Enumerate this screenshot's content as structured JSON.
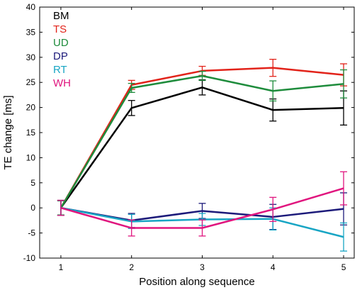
{
  "chart_data": {
    "type": "line",
    "title": "",
    "xlabel": "Position along sequence",
    "ylabel": "TE change [ms]",
    "xlim": [
      0.7,
      5.15
    ],
    "ylim": [
      -10,
      40
    ],
    "x": [
      1,
      2,
      3,
      4,
      5
    ],
    "xticks": [
      1,
      2,
      3,
      4,
      5
    ],
    "yticks": [
      -10,
      -5,
      0,
      5,
      10,
      15,
      20,
      25,
      30,
      35,
      40
    ],
    "grid": false,
    "legend_position": "top-left",
    "error_bars": true,
    "series": [
      {
        "name": "BM",
        "color": "#000000",
        "values": [
          0,
          19.9,
          24.0,
          19.5,
          19.9
        ],
        "err": [
          1.5,
          1.5,
          1.5,
          2.2,
          3.4
        ]
      },
      {
        "name": "TS",
        "color": "#e2231a",
        "values": [
          0,
          24.5,
          27.3,
          27.9,
          26.5
        ],
        "err": [
          1.5,
          0.9,
          0.9,
          1.7,
          2.2
        ]
      },
      {
        "name": "UD",
        "color": "#1e8c3c",
        "values": [
          0,
          23.9,
          26.3,
          23.3,
          24.7
        ],
        "err": [
          1.4,
          0.9,
          0.9,
          2.0,
          2.8
        ]
      },
      {
        "name": "DP",
        "color": "#1c1a7a",
        "values": [
          0,
          -2.5,
          -0.6,
          -1.8,
          -0.2
        ],
        "err": [
          1.5,
          1.4,
          1.5,
          2.5,
          3.2
        ]
      },
      {
        "name": "RT",
        "color": "#18a5c4",
        "values": [
          0,
          -2.7,
          -2.3,
          -2.2,
          -5.8
        ],
        "err": [
          1.5,
          1.4,
          1.2,
          2.2,
          2.8
        ]
      },
      {
        "name": "WH",
        "color": "#e0157e",
        "values": [
          0,
          -4.0,
          -4.0,
          -0.3,
          3.9
        ],
        "err": [
          1.5,
          1.6,
          1.6,
          2.4,
          3.3
        ]
      }
    ]
  }
}
